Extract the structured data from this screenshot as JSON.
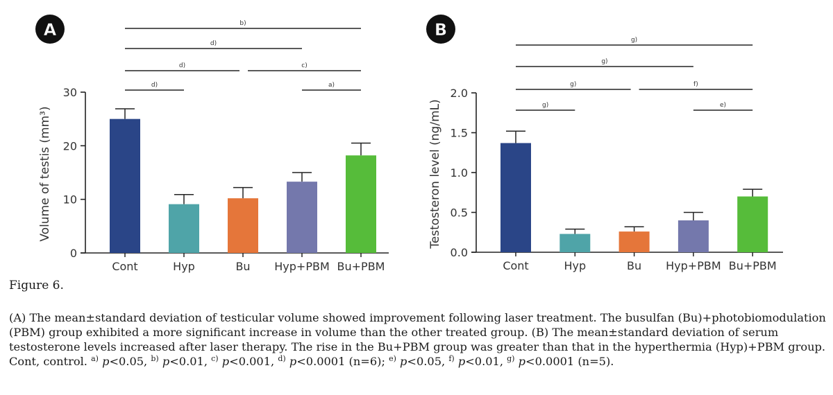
{
  "figure": {
    "title": "Figure 6.",
    "caption_segments": [
      {
        "t": "(A) The mean±standard deviation of testicular volume showed improvement following laser treatment. The busulfan (Bu)+photobiomodulation (PBM) group exhibited a more significant increase in volume than the other treated group. (B) The mean±standard deviation of serum testosterone levels increased after laser therapy. The rise in the Bu+PBM group was greater than that in the hyperthermia (Hyp)+PBM group. Cont, control. "
      },
      {
        "sup": "a)"
      },
      {
        "t": " "
      },
      {
        "i": "p"
      },
      {
        "t": "<0.05, "
      },
      {
        "sup": "b)"
      },
      {
        "t": " "
      },
      {
        "i": "p"
      },
      {
        "t": "<0.01, "
      },
      {
        "sup": "c)"
      },
      {
        "t": " "
      },
      {
        "i": "p"
      },
      {
        "t": "<0.001, "
      },
      {
        "sup": "d)"
      },
      {
        "t": " "
      },
      {
        "i": "p"
      },
      {
        "t": "<0.0001 (n=6); "
      },
      {
        "sup": "e)"
      },
      {
        "t": " "
      },
      {
        "i": "p"
      },
      {
        "t": "<0.05, "
      },
      {
        "sup": "f)"
      },
      {
        "t": " "
      },
      {
        "i": "p"
      },
      {
        "t": "<0.01, "
      },
      {
        "sup": "g)"
      },
      {
        "t": " "
      },
      {
        "i": "p"
      },
      {
        "t": "<0.0001 (n=5)."
      }
    ]
  },
  "colors": {
    "Cont": "#2A4587",
    "Hyp": "#4FA4A8",
    "Bu": "#E5763A",
    "Hyp+PBM": "#7478AC",
    "Bu+PBM": "#56BC3A"
  },
  "chart_data": [
    {
      "panel": "A",
      "type": "bar",
      "title": "",
      "xlabel": "",
      "ylabel": "Volume of testis (mm³)",
      "ylim": [
        0,
        30
      ],
      "yticks": [
        0,
        10,
        20,
        30
      ],
      "ytick_labels": [
        "0",
        "10",
        "20",
        "30"
      ],
      "grid": false,
      "categories": [
        "Cont",
        "Hyp",
        "Bu",
        "Hyp+PBM",
        "Bu+PBM"
      ],
      "values": [
        25.0,
        9.1,
        10.2,
        13.3,
        18.2
      ],
      "error_sd": [
        1.9,
        1.8,
        2.0,
        1.7,
        2.3
      ],
      "significance": [
        {
          "from": "Cont",
          "to": "Bu+PBM",
          "label": "b)",
          "level": 4
        },
        {
          "from": "Cont",
          "to": "Hyp+PBM",
          "label": "d)",
          "level": 3
        },
        {
          "from": "Cont",
          "to": "Bu",
          "label": "d)",
          "level": 2
        },
        {
          "from": "Bu",
          "to": "Bu+PBM",
          "label": "c)",
          "level": 2
        },
        {
          "from": "Cont",
          "to": "Hyp",
          "label": "d)",
          "level": 1
        },
        {
          "from": "Hyp+PBM",
          "to": "Bu+PBM",
          "label": "a)",
          "level": 1
        }
      ]
    },
    {
      "panel": "B",
      "type": "bar",
      "title": "",
      "xlabel": "",
      "ylabel": "Testosteron level (ng/mL)",
      "ylim": [
        0,
        2.0
      ],
      "yticks": [
        0,
        0.5,
        1.0,
        1.5,
        2.0
      ],
      "ytick_labels": [
        "0.0",
        "0.5",
        "1.0",
        "1.5",
        "2.0"
      ],
      "grid": false,
      "categories": [
        "Cont",
        "Hyp",
        "Bu",
        "Hyp+PBM",
        "Bu+PBM"
      ],
      "values": [
        1.37,
        0.23,
        0.26,
        0.4,
        0.7
      ],
      "error_sd": [
        0.15,
        0.06,
        0.06,
        0.1,
        0.09
      ],
      "significance": [
        {
          "from": "Cont",
          "to": "Bu+PBM",
          "label": "g)",
          "level": 4
        },
        {
          "from": "Cont",
          "to": "Hyp+PBM",
          "label": "g)",
          "level": 3
        },
        {
          "from": "Cont",
          "to": "Bu",
          "label": "g)",
          "level": 2
        },
        {
          "from": "Bu",
          "to": "Bu+PBM",
          "label": "f)",
          "level": 2
        },
        {
          "from": "Cont",
          "to": "Hyp",
          "label": "g)",
          "level": 1
        },
        {
          "from": "Hyp+PBM",
          "to": "Bu+PBM",
          "label": "e)",
          "level": 1
        }
      ]
    }
  ]
}
